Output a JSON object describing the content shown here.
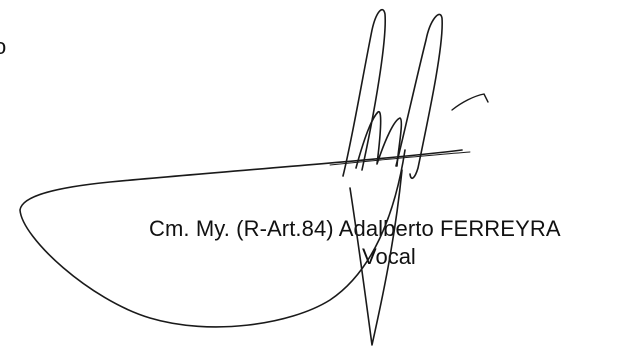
{
  "document": {
    "edge_fragment": "o",
    "signer_line": "Cm. My. (R-Art.84) Adalberto FERREYRA",
    "signer_role": "Vocal"
  },
  "signature": {
    "ink_color": "#1a1a1a"
  }
}
